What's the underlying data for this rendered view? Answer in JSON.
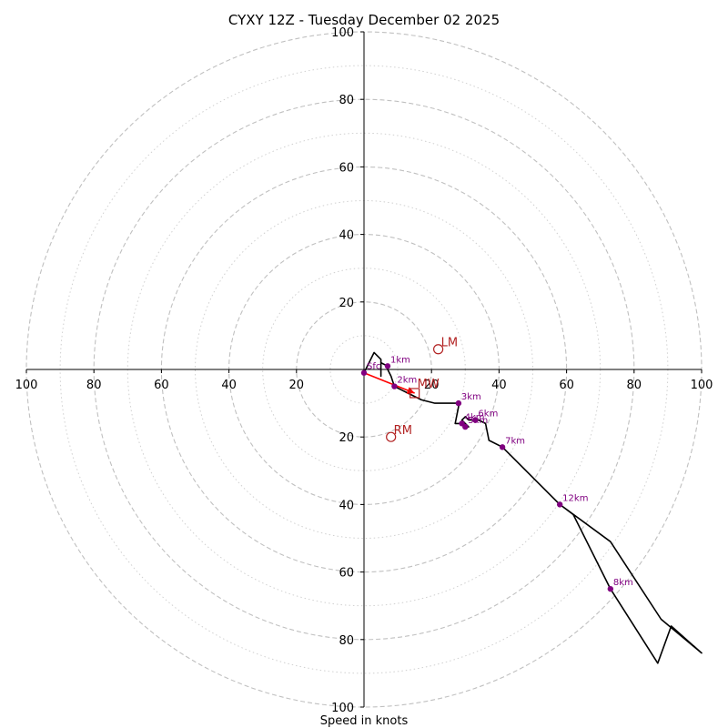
{
  "chart_data": {
    "type": "hodograph",
    "title": "CYXY 12Z - Tuesday December 02 2025",
    "xlabel": "Speed in knots",
    "axis_range": [
      -100,
      100
    ],
    "ring_step_major": 20,
    "ring_step_minor": 10,
    "x_ticks": [
      "100",
      "80",
      "60",
      "40",
      "20",
      "0",
      "20",
      "40",
      "60",
      "80",
      "100"
    ],
    "y_ticks": [
      "100",
      "80",
      "60",
      "40",
      "20",
      "0",
      "20",
      "40",
      "60",
      "80",
      "100"
    ],
    "colors": {
      "trace": "#000000",
      "height_marker": "#800080",
      "storm_motion": "#b22222",
      "mean_wind": "#ff0000",
      "grid": "#c0c0c0"
    },
    "trace_uv": [
      [
        0,
        -1
      ],
      [
        3,
        5
      ],
      [
        5,
        3
      ],
      [
        5,
        1
      ],
      [
        5,
        -2
      ],
      [
        5,
        2
      ],
      [
        7,
        1
      ],
      [
        7,
        0
      ],
      [
        8,
        -2
      ],
      [
        9,
        -5
      ],
      [
        11,
        -6
      ],
      [
        13,
        -7
      ],
      [
        17,
        -9
      ],
      [
        21,
        -10
      ],
      [
        27,
        -10
      ],
      [
        28,
        -10
      ],
      [
        28,
        -11
      ],
      [
        27,
        -16
      ],
      [
        28,
        -16
      ],
      [
        29,
        -16
      ],
      [
        30,
        -17
      ],
      [
        31,
        -17
      ],
      [
        30,
        -16
      ],
      [
        29,
        -15
      ],
      [
        30,
        -14
      ],
      [
        31,
        -15
      ],
      [
        32,
        -15
      ],
      [
        34,
        -15
      ],
      [
        36,
        -16
      ],
      [
        37,
        -21
      ],
      [
        41,
        -23
      ],
      [
        45,
        -27
      ],
      [
        58,
        -40
      ],
      [
        62,
        -43
      ],
      [
        73,
        -65
      ],
      [
        87,
        -87
      ],
      [
        91,
        -76
      ],
      [
        100,
        -84
      ],
      [
        88,
        -74
      ],
      [
        73,
        -51
      ],
      [
        58,
        -40
      ]
    ],
    "height_markers": [
      {
        "label": "Sfc",
        "u": 0,
        "v": -1
      },
      {
        "label": "1km",
        "u": 7,
        "v": 1
      },
      {
        "label": "2km",
        "u": 9,
        "v": -5
      },
      {
        "label": "3km",
        "u": 28,
        "v": -10
      },
      {
        "label": "4km",
        "u": 29,
        "v": -16
      },
      {
        "label": "5km",
        "u": 30,
        "v": -17
      },
      {
        "label": "6km",
        "u": 33,
        "v": -15
      },
      {
        "label": "7km",
        "u": 41,
        "v": -23
      },
      {
        "label": "8km",
        "u": 73,
        "v": -65
      },
      {
        "label": "12km",
        "u": 58,
        "v": -40
      }
    ],
    "storm_motions": [
      {
        "label": "LM",
        "u": 22,
        "v": 6
      },
      {
        "label": "RM",
        "u": 8,
        "v": -20
      },
      {
        "label": "MW",
        "u": 15,
        "v": -7
      }
    ],
    "mean_wind_vector": {
      "from": [
        0,
        -1
      ],
      "to": [
        15,
        -7
      ]
    }
  }
}
